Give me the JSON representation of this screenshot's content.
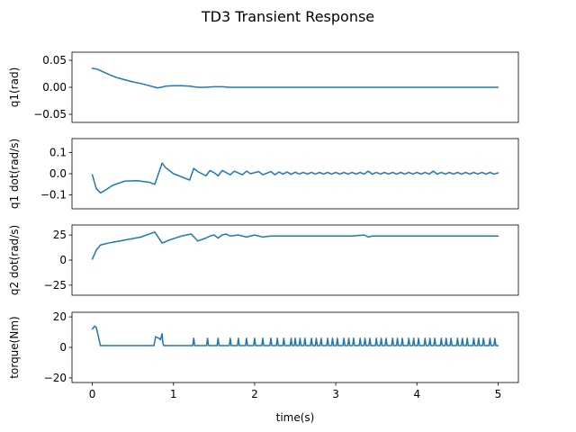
{
  "chart_data": {
    "type": "line",
    "title": "TD3 Transient Response",
    "xlabel": "time(s)",
    "xlim": [
      -0.25,
      5.25
    ],
    "xticks": [
      0,
      1,
      2,
      3,
      4,
      5
    ],
    "xtick_labels": [
      "0",
      "1",
      "2",
      "3",
      "4",
      "5"
    ],
    "line_color": "#1f77b4",
    "grid": false,
    "legend": "none",
    "subplots": [
      {
        "name": "q1",
        "ylabel": "q1(rad)",
        "ylim": [
          -0.065,
          0.065
        ],
        "yticks": [
          -0.05,
          0.0,
          0.05
        ],
        "ytick_labels": [
          "−0.05",
          "0.00",
          "0.05"
        ],
        "x": [
          0.0,
          0.05,
          0.1,
          0.2,
          0.3,
          0.4,
          0.5,
          0.6,
          0.7,
          0.75,
          0.8,
          0.85,
          0.9,
          1.0,
          1.1,
          1.2,
          1.3,
          1.4,
          1.5,
          1.6,
          1.7,
          1.8,
          2.0,
          2.5,
          3.0,
          4.0,
          5.0
        ],
        "y": [
          0.035,
          0.034,
          0.031,
          0.024,
          0.018,
          0.014,
          0.01,
          0.007,
          0.003,
          0.001,
          -0.001,
          0.0,
          0.002,
          0.003,
          0.003,
          0.002,
          0.0,
          0.0,
          0.001,
          0.001,
          0.0,
          0.0,
          0.0,
          0.0,
          0.0,
          0.0,
          0.0
        ]
      },
      {
        "name": "q1dot",
        "ylabel": "q1 dot(rad/s)",
        "ylim": [
          -0.165,
          0.165
        ],
        "yticks": [
          -0.1,
          0.0,
          0.1
        ],
        "ytick_labels": [
          "−0.1",
          "0.0",
          "0.1"
        ],
        "x": [
          0.0,
          0.05,
          0.1,
          0.15,
          0.25,
          0.4,
          0.55,
          0.7,
          0.77,
          0.86,
          0.9,
          1.0,
          1.2,
          1.25,
          1.3,
          1.4,
          1.45,
          1.5,
          1.55,
          1.6,
          1.65,
          1.7,
          1.75,
          1.85,
          1.9,
          1.95,
          2.05,
          2.1,
          2.2,
          2.25,
          2.3,
          2.35,
          2.4,
          2.45,
          2.5,
          2.55,
          2.6,
          2.65,
          2.7,
          2.75,
          2.8,
          2.85,
          2.9,
          2.95,
          3.0,
          3.05,
          3.1,
          3.15,
          3.2,
          3.25,
          3.3,
          3.35,
          3.4,
          3.45,
          3.5,
          3.55,
          3.6,
          3.65,
          3.7,
          3.75,
          3.8,
          3.85,
          3.9,
          3.95,
          4.0,
          4.05,
          4.1,
          4.15,
          4.2,
          4.25,
          4.3,
          4.35,
          4.4,
          4.45,
          4.5,
          4.55,
          4.6,
          4.65,
          4.7,
          4.75,
          4.8,
          4.85,
          4.9,
          4.95,
          5.0
        ],
        "y": [
          -0.005,
          -0.07,
          -0.09,
          -0.08,
          -0.055,
          -0.035,
          -0.033,
          -0.04,
          -0.05,
          0.05,
          0.03,
          0.0,
          -0.03,
          0.025,
          0.01,
          -0.01,
          0.015,
          0.005,
          -0.01,
          0.015,
          0.005,
          -0.005,
          0.012,
          -0.005,
          0.012,
          0.0,
          0.01,
          -0.005,
          0.01,
          -0.005,
          0.008,
          -0.002,
          0.008,
          -0.003,
          0.007,
          -0.002,
          0.006,
          -0.002,
          0.006,
          -0.002,
          0.006,
          -0.002,
          0.006,
          -0.002,
          0.006,
          -0.002,
          0.006,
          -0.002,
          0.006,
          -0.002,
          0.006,
          -0.002,
          0.012,
          -0.002,
          0.006,
          -0.002,
          0.006,
          -0.002,
          0.006,
          -0.002,
          0.006,
          -0.002,
          0.006,
          -0.002,
          0.006,
          -0.002,
          0.006,
          -0.002,
          0.012,
          -0.002,
          0.006,
          -0.002,
          0.006,
          -0.002,
          0.006,
          -0.002,
          0.006,
          -0.002,
          0.006,
          -0.002,
          0.006,
          -0.002,
          0.006,
          -0.002,
          0.004
        ]
      },
      {
        "name": "q2dot",
        "ylabel": "q2 dot(rad/s)",
        "ylim": [
          -35,
          35
        ],
        "yticks": [
          -25,
          0,
          25
        ],
        "ytick_labels": [
          "−25",
          "0",
          "25"
        ],
        "x": [
          0.0,
          0.05,
          0.1,
          0.2,
          0.4,
          0.6,
          0.77,
          0.86,
          0.95,
          1.1,
          1.22,
          1.3,
          1.4,
          1.45,
          1.5,
          1.55,
          1.6,
          1.65,
          1.7,
          1.8,
          1.9,
          2.0,
          2.1,
          2.2,
          2.4,
          2.6,
          2.8,
          3.0,
          3.2,
          3.35,
          3.4,
          3.45,
          3.6,
          3.8,
          4.0,
          4.2,
          4.4,
          4.6,
          4.8,
          5.0
        ],
        "y": [
          1,
          10,
          15,
          17,
          20,
          23,
          28,
          17,
          20,
          24,
          26,
          19,
          22,
          24,
          25,
          22,
          25,
          26,
          24,
          25,
          23,
          25,
          23,
          24,
          24,
          24,
          24,
          24,
          24,
          25,
          23,
          24,
          24,
          24,
          24,
          24,
          24,
          24,
          24,
          24
        ]
      },
      {
        "name": "torque",
        "ylabel": "torque(Nm)",
        "ylim": [
          -23,
          23
        ],
        "yticks": [
          -20,
          0,
          20
        ],
        "ytick_labels": [
          "−20",
          "0",
          "20"
        ],
        "spikes": {
          "baseline": 1.2,
          "peak": 6,
          "times": [
            1.25,
            1.42,
            1.55,
            1.7,
            1.8,
            1.9,
            2.0,
            2.1,
            2.2,
            2.28,
            2.36,
            2.45,
            2.5,
            2.56,
            2.62,
            2.7,
            2.76,
            2.82,
            2.9,
            2.96,
            3.02,
            3.1,
            3.16,
            3.22,
            3.3,
            3.36,
            3.42,
            3.5,
            3.56,
            3.62,
            3.7,
            3.76,
            3.82,
            3.9,
            3.96,
            4.02,
            4.1,
            4.16,
            4.22,
            4.3,
            4.36,
            4.42,
            4.5,
            4.56,
            4.62,
            4.7,
            4.76,
            4.82,
            4.9,
            4.96
          ]
        },
        "x": [
          0.0,
          0.03,
          0.05,
          0.08,
          0.1,
          0.76,
          0.78,
          0.82,
          0.84,
          0.86,
          0.87,
          0.88
        ],
        "y": [
          12,
          14,
          13,
          6,
          1.2,
          1.2,
          7,
          6,
          5,
          9,
          3,
          1.2
        ]
      }
    ]
  }
}
